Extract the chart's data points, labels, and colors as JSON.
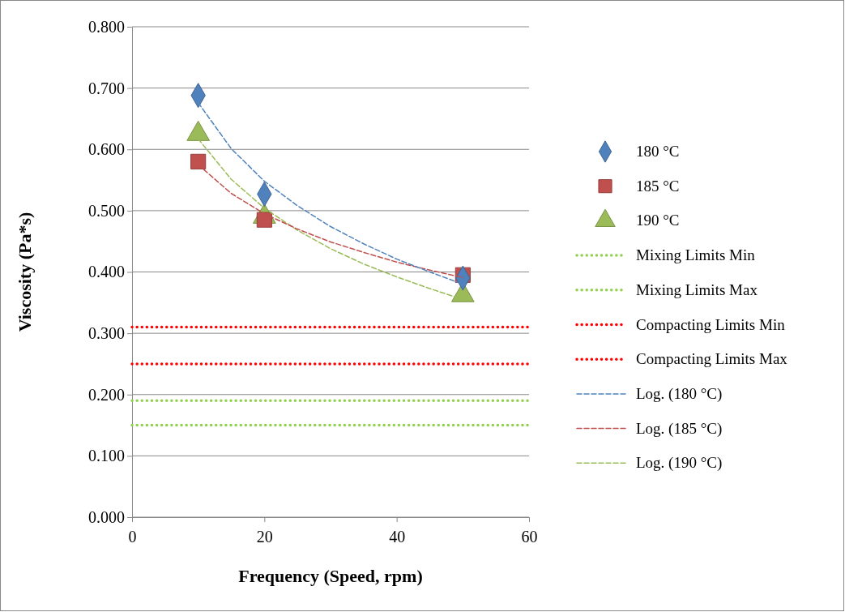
{
  "chart_data": {
    "type": "scatter",
    "xlabel": "Frequency (Speed, rpm)",
    "ylabel": "Viscosity (Pa*s)",
    "xlim": [
      0,
      60
    ],
    "xticks": [
      0,
      20,
      40,
      60
    ],
    "ylim": [
      0,
      0.8
    ],
    "yticks": [
      {
        "value": 0,
        "label": "0.000"
      },
      {
        "value": 0.1,
        "label": "0.100"
      },
      {
        "value": 0.2,
        "label": "0.200"
      },
      {
        "value": 0.3,
        "label": "0.300"
      },
      {
        "value": 0.4,
        "label": "0.400"
      },
      {
        "value": 0.5,
        "label": "0.500"
      },
      {
        "value": 0.6,
        "label": "0.600"
      },
      {
        "value": 0.7,
        "label": "0.700"
      },
      {
        "value": 0.8,
        "label": "0.800"
      }
    ],
    "grid": "y",
    "legend": "right",
    "series": [
      {
        "name": "180 °C",
        "marker": "diamond",
        "color": "#4f81bd",
        "x": [
          10,
          20,
          50
        ],
        "values": [
          0.688,
          0.527,
          0.39
        ]
      },
      {
        "name": "185 °C",
        "marker": "square",
        "color": "#c0504d",
        "x": [
          10,
          20,
          50
        ],
        "values": [
          0.58,
          0.485,
          0.395
        ]
      },
      {
        "name": "190 °C",
        "marker": "triangle",
        "color": "#9bbb59",
        "x": [
          10,
          20,
          50
        ],
        "values": [
          0.625,
          0.49,
          0.362
        ]
      },
      {
        "name": "Mixing Limits Min",
        "type": "line",
        "line_style": "dotted",
        "color": "#92d050",
        "x": [
          0,
          60
        ],
        "values": [
          0.15,
          0.15
        ]
      },
      {
        "name": "Mixing Limits Max",
        "type": "line",
        "line_style": "dotted",
        "color": "#92d050",
        "x": [
          0,
          60
        ],
        "values": [
          0.19,
          0.19
        ]
      },
      {
        "name": "Compacting Limits Min",
        "type": "line",
        "line_style": "dotted",
        "color": "#ff0000",
        "x": [
          0,
          60
        ],
        "values": [
          0.31,
          0.31
        ]
      },
      {
        "name": "Compacting Limits Max",
        "type": "line",
        "line_style": "dotted",
        "color": "#ff0000",
        "x": [
          0,
          60
        ],
        "values": [
          0.25,
          0.25
        ]
      },
      {
        "name": "Log. (180 °C)",
        "type": "line",
        "line_style": "dashed",
        "color": "#4f81bd",
        "x": [
          10,
          15,
          20,
          25,
          30,
          35,
          40,
          45,
          50
        ],
        "values": [
          0.676,
          0.601,
          0.548,
          0.508,
          0.474,
          0.446,
          0.421,
          0.4,
          0.38
        ]
      },
      {
        "name": "Log. (185 °C)",
        "type": "line",
        "line_style": "dashed",
        "color": "#c0504d",
        "x": [
          10,
          15,
          20,
          25,
          30,
          35,
          40,
          45,
          50
        ],
        "values": [
          0.575,
          0.528,
          0.495,
          0.47,
          0.449,
          0.432,
          0.416,
          0.403,
          0.391
        ]
      },
      {
        "name": "Log. (190 °C)",
        "type": "line",
        "line_style": "dashed",
        "color": "#9bbb59",
        "x": [
          10,
          15,
          20,
          25,
          30,
          35,
          40,
          45,
          50
        ],
        "values": [
          0.617,
          0.551,
          0.504,
          0.468,
          0.438,
          0.413,
          0.392,
          0.373,
          0.355
        ]
      }
    ]
  }
}
